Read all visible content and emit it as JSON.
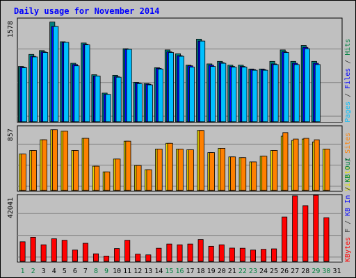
{
  "title": "Daily usage for November 2014",
  "chart_data": {
    "type": "bar",
    "categories": [
      "1",
      "2",
      "3",
      "4",
      "5",
      "6",
      "7",
      "8",
      "9",
      "10",
      "11",
      "12",
      "13",
      "14",
      "15",
      "16",
      "17",
      "18",
      "19",
      "20",
      "21",
      "22",
      "23",
      "24",
      "25",
      "26",
      "27",
      "28",
      "29",
      "30",
      "31"
    ],
    "weekend_days": [
      "1",
      "2",
      "8",
      "9",
      "15",
      "16",
      "22",
      "23",
      "29",
      "30"
    ],
    "grid": true,
    "panels": [
      {
        "id": "top",
        "ymax_label": "1578",
        "ymax": 1578,
        "right_labels": [
          {
            "text": "Pages",
            "color": "#00c0ff"
          },
          {
            "text": " / ",
            "color": "#333333"
          },
          {
            "text": "Files",
            "color": "#0000ff"
          },
          {
            "text": " / ",
            "color": "#333333"
          },
          {
            "text": "Hits",
            "color": "#008040"
          }
        ],
        "series": [
          {
            "name": "Hits",
            "color": "#008080",
            "values": [
              870,
              1060,
              1120,
              1570,
              1260,
              920,
              1240,
              740,
              450,
              730,
              1150,
              620,
              600,
              850,
              1130,
              1070,
              890,
              1300,
              910,
              950,
              890,
              890,
              830,
              830,
              950,
              1130,
              950,
              1200,
              950,
              null,
              null
            ]
          },
          {
            "name": "Files",
            "color": "#0000ff",
            "values": [
              860,
              1030,
              1100,
              1500,
              1250,
              900,
              1220,
              720,
              430,
              710,
              1140,
              610,
              590,
              840,
              1100,
              1040,
              880,
              1270,
              890,
              930,
              870,
              870,
              820,
              820,
              910,
              1100,
              920,
              1170,
              920,
              null,
              null
            ]
          },
          {
            "name": "Pages",
            "color": "#00c0ff",
            "values": [
              850,
              1020,
              1090,
              1500,
              1250,
              880,
              1210,
              720,
              430,
              700,
              1140,
              600,
              580,
              830,
              1090,
              1030,
              860,
              1270,
              870,
              920,
              860,
              860,
              810,
              810,
              900,
              1090,
              900,
              1150,
              900,
              null,
              null
            ]
          }
        ]
      },
      {
        "id": "mid",
        "ymax_label": "857",
        "ymax": 857,
        "right_labels": [
          {
            "text": "Visits",
            "color": "#e0e000"
          },
          {
            "text": " / ",
            "color": "#333333"
          },
          {
            "text": "Sites",
            "color": "#ff8000"
          }
        ],
        "series": [
          {
            "name": "Visits",
            "color": "#e8d800",
            "values": [
              510,
              560,
              710,
              850,
              830,
              560,
              730,
              340,
              260,
              440,
              690,
              350,
              290,
              580,
              660,
              580,
              570,
              840,
              530,
              590,
              470,
              460,
              400,
              480,
              560,
              760,
              700,
              720,
              680,
              580,
              null
            ]
          },
          {
            "name": "Sites",
            "color": "#ff8000",
            "values": [
              510,
              560,
              710,
              850,
              830,
              560,
              730,
              340,
              260,
              440,
              690,
              350,
              290,
              580,
              660,
              580,
              570,
              840,
              530,
              590,
              470,
              460,
              400,
              480,
              560,
              810,
              720,
              730,
              710,
              580,
              null
            ]
          }
        ]
      },
      {
        "id": "bot",
        "ymax_label": "42041",
        "ymax": 42041,
        "right_labels": [
          {
            "text": "KBytes",
            "color": "#ff0000"
          },
          {
            "text": " F / ",
            "color": "#333333"
          },
          {
            "text": "KB In",
            "color": "#0000ff"
          },
          {
            "text": " / ",
            "color": "#333333"
          },
          {
            "text": "KB Out",
            "color": "#008040"
          }
        ],
        "series": [
          {
            "name": "KBytes F",
            "color": "#ff0000",
            "values": [
              13000,
              16000,
              11000,
              15000,
              14000,
              7500,
              12000,
              5000,
              3500,
              8500,
              14000,
              4800,
              4300,
              8700,
              11500,
              11000,
              11500,
              14500,
              10000,
              11000,
              8800,
              8700,
              7500,
              8000,
              8300,
              29500,
              43500,
              37000,
              46000,
              29000,
              null
            ]
          }
        ]
      }
    ]
  },
  "colors": {
    "background": "#c0c0c0",
    "plot": "#c0c0c0",
    "title": "#0000ff",
    "axis_label": "#000000",
    "weekday_label": "#000000",
    "weekend_label": "#008040"
  }
}
